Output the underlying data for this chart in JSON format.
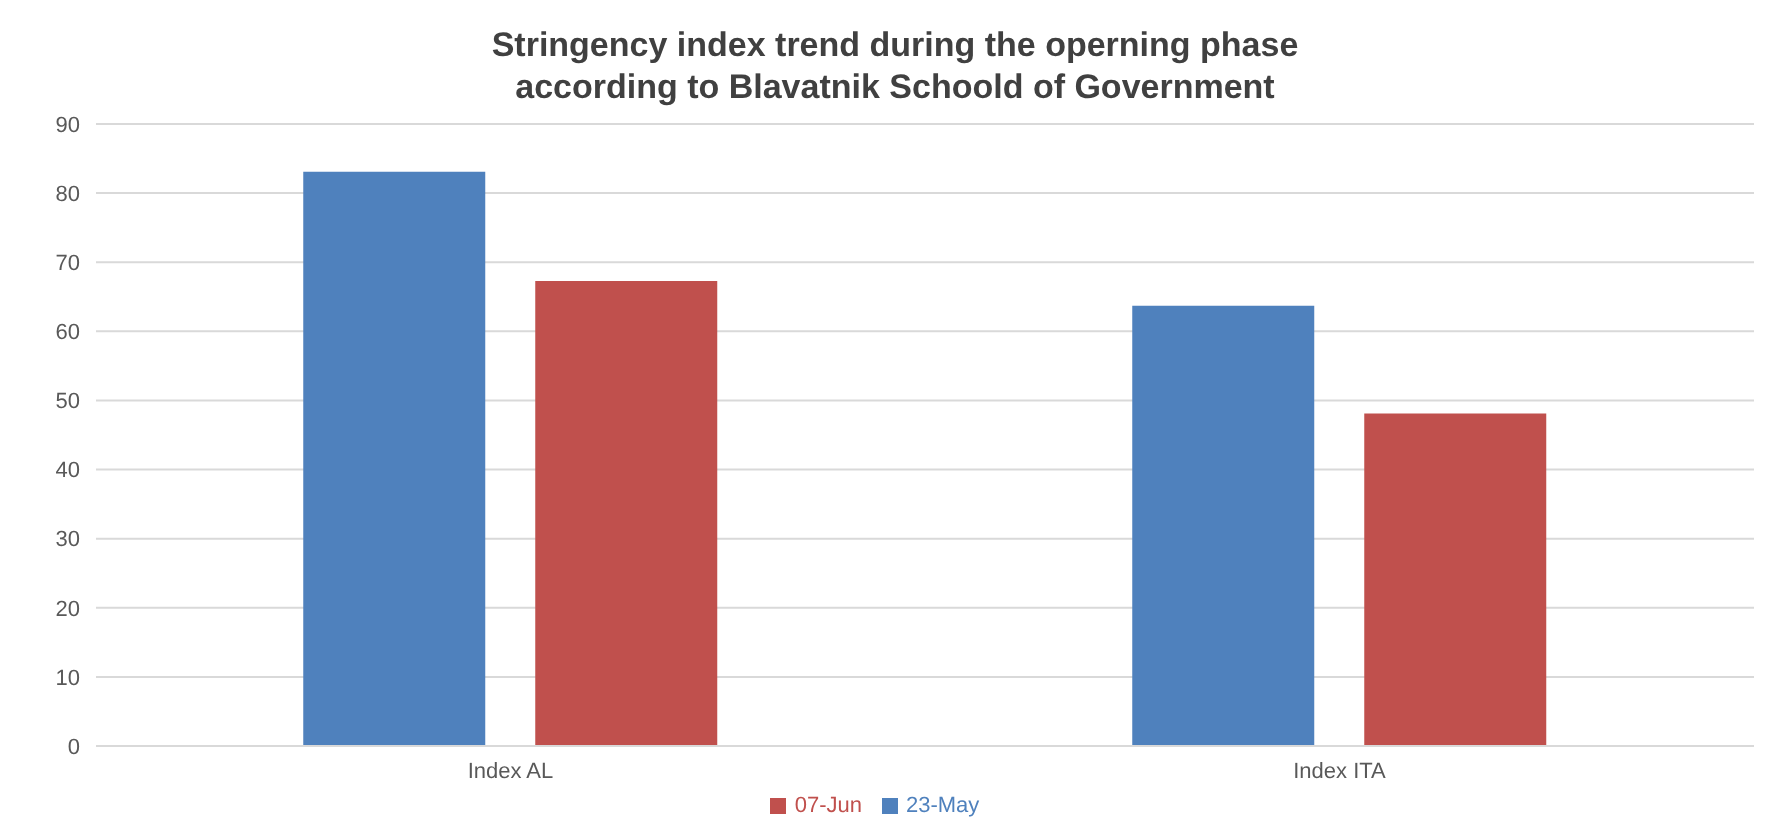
{
  "chart_data": {
    "type": "bar",
    "title": "Stringency index trend during the operning phase according to Blavatnik Schoold of Government",
    "categories": [
      "Index AL",
      "Index ITA"
    ],
    "series": [
      {
        "name": "23-May",
        "color": "#4f81bd",
        "values": [
          83.1,
          63.7
        ]
      },
      {
        "name": "07-Jun",
        "color": "#c0504d",
        "values": [
          67.3,
          48.1
        ]
      }
    ],
    "ylim": [
      0,
      90
    ],
    "yticks": [
      0,
      10,
      20,
      30,
      40,
      50,
      60,
      70,
      80,
      90
    ],
    "grid": "y",
    "legend": "bottom"
  }
}
